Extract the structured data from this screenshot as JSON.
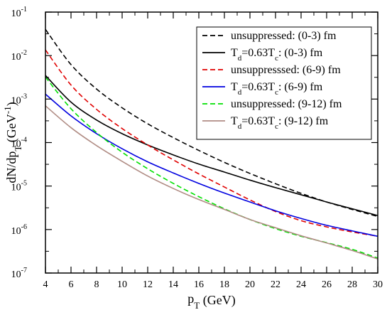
{
  "chart_data": {
    "type": "line",
    "title": "",
    "xlabel": {
      "base": "p",
      "sub": "T",
      "rest": " (GeV)"
    },
    "ylabel": {
      "t1": "dN/dp",
      "sub": "T",
      "t2": " (GeV",
      "sup": "-1",
      "t3": ")"
    },
    "x_scale": "linear",
    "y_scale": "log",
    "xlim": [
      4,
      30
    ],
    "ylim": [
      1e-07,
      0.1
    ],
    "x_ticks": [
      4,
      6,
      8,
      10,
      12,
      14,
      16,
      18,
      20,
      22,
      24,
      26,
      28,
      30
    ],
    "y_ticks": [
      {
        "value": 1e-07,
        "base": "10",
        "exp": "-7"
      },
      {
        "value": 1e-06,
        "base": "10",
        "exp": "-6"
      },
      {
        "value": 1e-05,
        "base": "10",
        "exp": "-5"
      },
      {
        "value": 0.0001,
        "base": "10",
        "exp": "-4"
      },
      {
        "value": 0.001,
        "base": "10",
        "exp": "-3"
      },
      {
        "value": 0.01,
        "base": "10",
        "exp": "-2"
      },
      {
        "value": 0.1,
        "base": "10",
        "exp": "-1"
      }
    ],
    "grid": false,
    "legend_position": "top-right",
    "series": [
      {
        "label": {
          "text": "unsuppressed: (0-3) fm"
        },
        "color": "#000000",
        "dash": "dashed",
        "x": [
          4,
          6,
          8,
          10,
          12,
          14,
          16,
          18,
          20,
          22,
          24,
          26,
          28,
          30
        ],
        "y": [
          0.04,
          0.0062,
          0.0017,
          0.00063,
          0.00027,
          0.00013,
          6.6e-05,
          3.5e-05,
          1.95e-05,
          1.13e-05,
          6.8e-06,
          4.3e-06,
          2.9e-06,
          2e-06
        ]
      },
      {
        "label": {
          "t1": "T",
          "sub1": "d",
          "t2": "=0.63T",
          "sub2": "c",
          "t3": ": (0-3) fm"
        },
        "color": "#000000",
        "dash": "solid",
        "x": [
          4,
          6,
          8,
          10,
          12,
          14,
          16,
          18,
          20,
          22,
          24,
          26,
          28,
          30
        ],
        "y": [
          0.0035,
          0.00085,
          0.00033,
          0.00016,
          8.8e-05,
          5.2e-05,
          3.2e-05,
          2.1e-05,
          1.37e-05,
          9.2e-06,
          6.3e-06,
          4.3e-06,
          3e-06,
          2.1e-06
        ]
      },
      {
        "label": {
          "text": "unsuppresssed: (6-9) fm"
        },
        "color": "#e00000",
        "dash": "dashed",
        "x": [
          4,
          6,
          8,
          10,
          12,
          14,
          16,
          18,
          20,
          22,
          24,
          26,
          28,
          30
        ],
        "y": [
          0.0135,
          0.0021,
          0.00058,
          0.00021,
          8.8e-05,
          4e-05,
          1.9e-05,
          9.5e-06,
          4.8e-06,
          2.6e-06,
          1.6e-06,
          1.15e-06,
          8.8e-07,
          7e-07
        ]
      },
      {
        "label": {
          "t1": "T",
          "sub1": "d",
          "t2": "=0.63T",
          "sub2": "c",
          "t3": ": (6-9) fm"
        },
        "color": "#0000e0",
        "dash": "solid",
        "x": [
          4,
          6,
          8,
          10,
          12,
          14,
          16,
          18,
          20,
          22,
          24,
          26,
          28,
          30
        ],
        "y": [
          0.0013,
          0.00041,
          0.00016,
          7.2e-05,
          3.6e-05,
          2e-05,
          1.15e-05,
          6.9e-06,
          4.3e-06,
          2.7e-06,
          1.8e-06,
          1.25e-06,
          9.3e-07,
          7e-07
        ]
      },
      {
        "label": {
          "text": "unsuppressed: (9-12) fm"
        },
        "color": "#00e000",
        "dash": "dashed",
        "x": [
          4,
          6,
          8,
          10,
          12,
          14,
          16,
          18,
          20,
          22,
          24,
          26,
          28,
          30
        ],
        "y": [
          0.0032,
          0.0006,
          0.00017,
          6e-05,
          2.5e-05,
          1.15e-05,
          5.7e-06,
          3e-06,
          1.7e-06,
          1.05e-06,
          7e-07,
          5e-07,
          3.5e-07,
          2.2e-07
        ]
      },
      {
        "label": {
          "t1": "T",
          "sub1": "d",
          "t2": "=0.63T",
          "sub2": "c",
          "t3": ": (9-12) fm"
        },
        "color": "#b08c84",
        "dash": "solid",
        "x": [
          4,
          6,
          8,
          10,
          12,
          14,
          16,
          18,
          20,
          22,
          24,
          26,
          28,
          30
        ],
        "y": [
          0.0007,
          0.00022,
          8.5e-05,
          3.7e-05,
          1.7e-05,
          8.8e-06,
          4.9e-06,
          2.9e-06,
          1.7e-06,
          1.1e-06,
          7.2e-07,
          4.9e-07,
          3.3e-07,
          2.1e-07
        ]
      }
    ]
  }
}
